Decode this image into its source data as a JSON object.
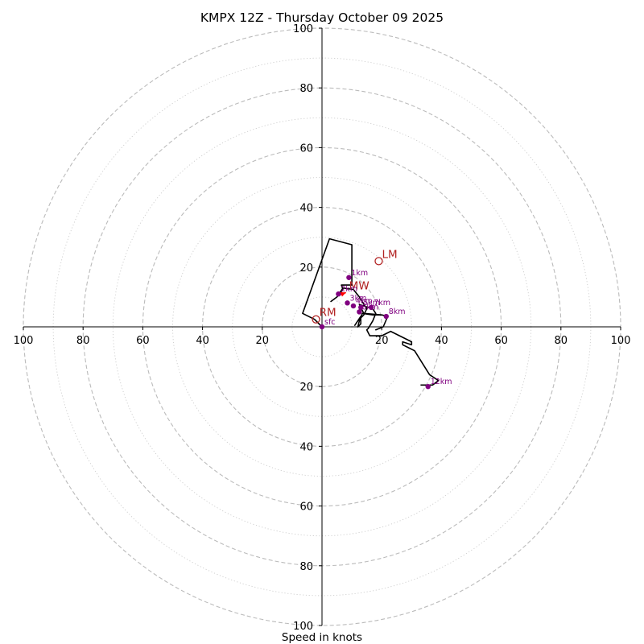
{
  "chart_data": {
    "type": "hodograph",
    "title": "KMPX 12Z - Thursday October 09 2025",
    "xlabel": "Speed in knots",
    "range": [
      -100,
      100
    ],
    "major_ring_step": 20,
    "minor_ring_step": 10,
    "axis_tick_labels": {
      "positive_x": [
        "20",
        "40",
        "60",
        "80",
        "100"
      ],
      "negative_x": [
        "20",
        "40",
        "60",
        "80",
        "100"
      ],
      "positive_y": [
        "20",
        "40",
        "60",
        "80",
        "100"
      ],
      "negative_y": [
        "20",
        "40",
        "60",
        "80",
        "100"
      ]
    },
    "tick_values": [
      20,
      40,
      60,
      80,
      100
    ],
    "colors": {
      "trace": "#000000",
      "height_marker": "#800080",
      "storm_motion": "#b22222",
      "mean_wind_arrow": "#ff0000",
      "major_ring": "#bbbbbb",
      "minor_ring": "#cccccc"
    },
    "trace": [
      [
        0.0,
        0.0
      ],
      [
        -2.5,
        2.5
      ],
      [
        -6.5,
        4.5
      ],
      [
        2.5,
        29.5
      ],
      [
        10.0,
        27.5
      ],
      [
        10.0,
        14.0
      ],
      [
        6.5,
        14.0
      ],
      [
        7.0,
        12.5
      ],
      [
        5.0,
        10.0
      ],
      [
        3.0,
        8.5
      ],
      [
        5.0,
        10.0
      ],
      [
        7.0,
        13.0
      ],
      [
        10.5,
        12.5
      ],
      [
        12.5,
        10.0
      ],
      [
        15.0,
        6.0
      ],
      [
        14.0,
        4.0
      ],
      [
        12.0,
        2.0
      ],
      [
        11.0,
        0.5
      ],
      [
        13.0,
        3.5
      ],
      [
        13.0,
        1.0
      ],
      [
        12.0,
        0.0
      ],
      [
        12.5,
        2.0
      ],
      [
        13.5,
        4.5
      ],
      [
        17.0,
        4.0
      ],
      [
        20.0,
        4.0
      ],
      [
        22.0,
        3.5
      ],
      [
        20.5,
        0.0
      ],
      [
        18.0,
        -1.0
      ],
      [
        20.5,
        0.0
      ],
      [
        22.0,
        3.5
      ],
      [
        20.0,
        4.0
      ],
      [
        14.0,
        4.5
      ],
      [
        12.5,
        7.5
      ],
      [
        17.0,
        6.0
      ],
      [
        18.0,
        4.5
      ],
      [
        17.0,
        2.0
      ],
      [
        15.5,
        -0.5
      ],
      [
        15.0,
        -1.0
      ],
      [
        16.0,
        -3.0
      ],
      [
        20.0,
        -3.0
      ],
      [
        23.0,
        -1.5
      ],
      [
        30.0,
        -5.0
      ],
      [
        30.0,
        -6.0
      ],
      [
        27.0,
        -5.0
      ],
      [
        27.0,
        -6.0
      ],
      [
        31.0,
        -8.0
      ],
      [
        36.0,
        -16.0
      ],
      [
        39.0,
        -18.0
      ],
      [
        37.0,
        -19.5
      ],
      [
        33.0,
        -19.5
      ]
    ],
    "height_points": [
      {
        "label": "sfc",
        "u": 0.0,
        "v": 0.0
      },
      {
        "label": "1km",
        "u": 9.0,
        "v": 16.5
      },
      {
        "label": "2km",
        "u": 5.5,
        "v": 11.0
      },
      {
        "label": "3km",
        "u": 8.5,
        "v": 8.0
      },
      {
        "label": "4km",
        "u": 10.5,
        "v": 7.0
      },
      {
        "label": "5km",
        "u": 13.0,
        "v": 6.5
      },
      {
        "label": "6km",
        "u": 12.5,
        "v": 5.0
      },
      {
        "label": "7km",
        "u": 16.5,
        "v": 6.5
      },
      {
        "label": "8km",
        "u": 21.5,
        "v": 3.5
      },
      {
        "label": "12km",
        "u": 35.5,
        "v": -20.0
      }
    ],
    "storm_motions": [
      {
        "label": "RM",
        "u": -2.0,
        "v": 2.5
      },
      {
        "label": "LM",
        "u": 19.0,
        "v": 22.0
      },
      {
        "label": "MW",
        "u": 8.0,
        "v": 11.5
      }
    ],
    "mean_wind_arrow": {
      "from": [
        5.5,
        10.5
      ],
      "to": [
        8.0,
        11.5
      ]
    }
  }
}
